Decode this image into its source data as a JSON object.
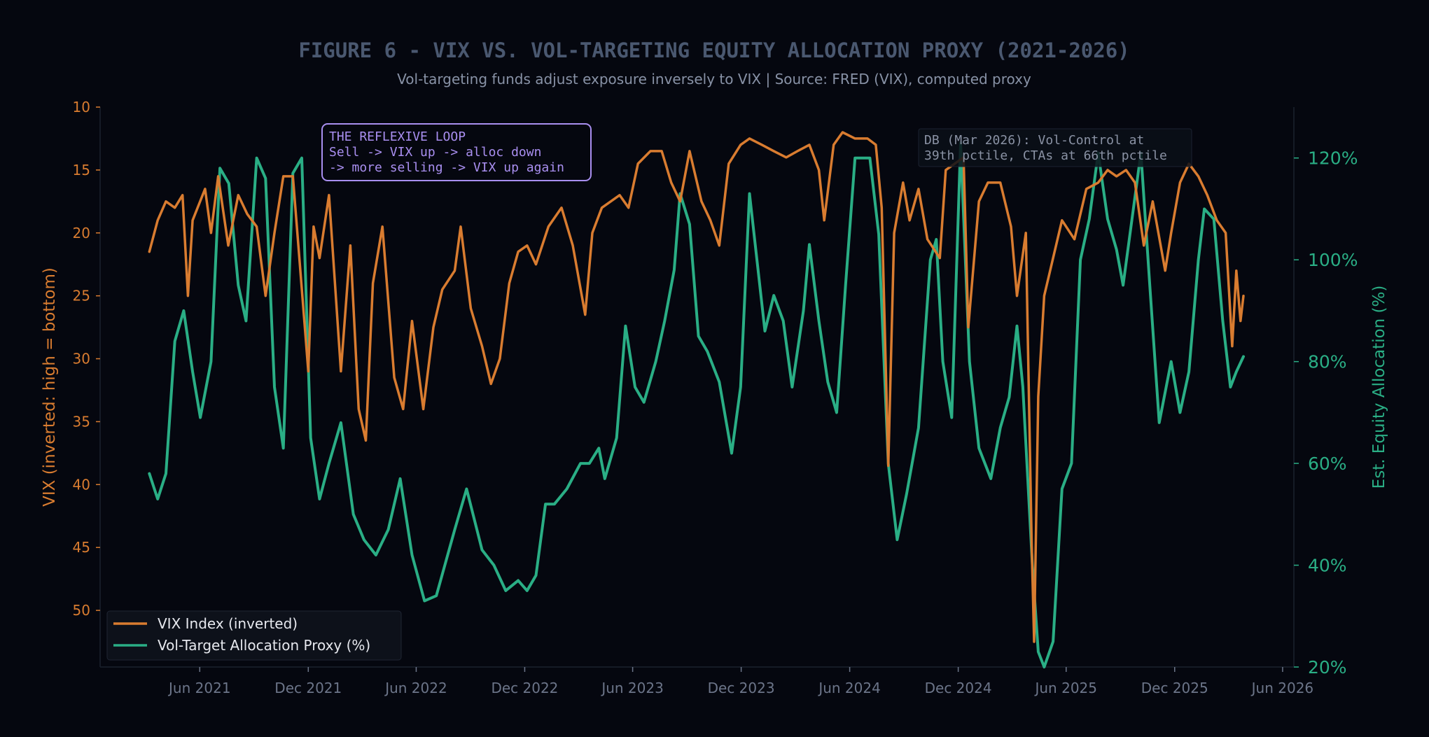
{
  "figure": {
    "title": "FIGURE 6  -  VIX VS. VOL-TARGETING EQUITY ALLOCATION PROXY  (2021-2026)",
    "subtitle": "Vol-targeting funds adjust exposure inversely to VIX  |  Source: FRED (VIX), computed proxy"
  },
  "colors": {
    "background": "#05070f",
    "vix": "#d97c30",
    "alloc": "#2aae85",
    "title": "#4a5870",
    "subtitle": "#8892a6",
    "tick_x": "#6c7589",
    "annotation_purple": "#a98ff0",
    "annotation_gray": "#8a92a4"
  },
  "annotations": {
    "loop_title": "THE REFLEXIVE LOOP",
    "loop_line1": "Sell -> VIX up -> alloc down",
    "loop_line2": "-> more selling -> VIX up again",
    "db_line1": "DB (Mar 2026): Vol-Control at",
    "db_line2": "39th pctile, CTAs at 66th pctile"
  },
  "chart_data": {
    "type": "line",
    "x_label": "",
    "x_ticks": [
      "Jun 2021",
      "Dec 2021",
      "Jun 2022",
      "Dec 2022",
      "Jun 2023",
      "Dec 2023",
      "Jun 2024",
      "Dec 2024",
      "Jun 2025",
      "Dec 2025",
      "Jun 2026"
    ],
    "x_range": [
      "2020-12-15",
      "2026-06-20"
    ],
    "y_left": {
      "label": "VIX (inverted: high = bottom)",
      "inverted": true,
      "range": [
        10,
        54.5
      ],
      "ticks": [
        10,
        15,
        20,
        25,
        30,
        35,
        40,
        45,
        50
      ]
    },
    "y_right": {
      "label": "Est. Equity Allocation (%)",
      "range": [
        20,
        130
      ],
      "ticks": [
        "20%",
        "40%",
        "60%",
        "80%",
        "100%",
        "120%"
      ],
      "tick_values": [
        20,
        40,
        60,
        80,
        100,
        120
      ]
    },
    "legend": {
      "position": "bottom-left"
    },
    "grid": false,
    "series": [
      {
        "name": "VIX Index (inverted)",
        "axis": "left",
        "points": [
          [
            "2021-03-08",
            21.5
          ],
          [
            "2021-03-22",
            19.0
          ],
          [
            "2021-04-05",
            17.5
          ],
          [
            "2021-04-20",
            18.0
          ],
          [
            "2021-05-03",
            17.0
          ],
          [
            "2021-05-12",
            25.0
          ],
          [
            "2021-05-20",
            19.0
          ],
          [
            "2021-06-10",
            16.5
          ],
          [
            "2021-06-20",
            20.0
          ],
          [
            "2021-07-02",
            15.5
          ],
          [
            "2021-07-19",
            21.0
          ],
          [
            "2021-08-05",
            17.0
          ],
          [
            "2021-08-20",
            18.5
          ],
          [
            "2021-09-05",
            19.5
          ],
          [
            "2021-09-20",
            25.0
          ],
          [
            "2021-10-05",
            20.0
          ],
          [
            "2021-10-20",
            15.5
          ],
          [
            "2021-11-05",
            15.5
          ],
          [
            "2021-11-26",
            28.0
          ],
          [
            "2021-12-01",
            31.0
          ],
          [
            "2021-12-10",
            19.5
          ],
          [
            "2021-12-20",
            22.0
          ],
          [
            "2022-01-05",
            17.0
          ],
          [
            "2022-01-25",
            31.0
          ],
          [
            "2022-02-10",
            21.0
          ],
          [
            "2022-02-24",
            34.0
          ],
          [
            "2022-03-08",
            36.5
          ],
          [
            "2022-03-20",
            24.0
          ],
          [
            "2022-04-05",
            19.5
          ],
          [
            "2022-04-25",
            31.5
          ],
          [
            "2022-05-10",
            34.0
          ],
          [
            "2022-05-25",
            27.0
          ],
          [
            "2022-06-13",
            34.0
          ],
          [
            "2022-06-30",
            27.5
          ],
          [
            "2022-07-15",
            24.5
          ],
          [
            "2022-08-05",
            23.0
          ],
          [
            "2022-08-15",
            19.5
          ],
          [
            "2022-09-01",
            26.0
          ],
          [
            "2022-09-20",
            29.0
          ],
          [
            "2022-10-05",
            32.0
          ],
          [
            "2022-10-20",
            30.0
          ],
          [
            "2022-11-05",
            24.0
          ],
          [
            "2022-11-20",
            21.5
          ],
          [
            "2022-12-05",
            21.0
          ],
          [
            "2022-12-20",
            22.5
          ],
          [
            "2023-01-10",
            19.5
          ],
          [
            "2023-02-01",
            18.0
          ],
          [
            "2023-02-20",
            21.0
          ],
          [
            "2023-03-13",
            26.5
          ],
          [
            "2023-03-25",
            20.0
          ],
          [
            "2023-04-10",
            18.0
          ],
          [
            "2023-04-25",
            17.5
          ],
          [
            "2023-05-10",
            17.0
          ],
          [
            "2023-05-25",
            18.0
          ],
          [
            "2023-06-10",
            14.5
          ],
          [
            "2023-07-01",
            13.5
          ],
          [
            "2023-07-20",
            13.5
          ],
          [
            "2023-08-05",
            16.0
          ],
          [
            "2023-08-20",
            17.5
          ],
          [
            "2023-09-05",
            13.5
          ],
          [
            "2023-09-25",
            17.5
          ],
          [
            "2023-10-10",
            19.0
          ],
          [
            "2023-10-25",
            21.0
          ],
          [
            "2023-11-10",
            14.5
          ],
          [
            "2023-11-30",
            13.0
          ],
          [
            "2023-12-15",
            12.5
          ],
          [
            "2024-01-05",
            13.0
          ],
          [
            "2024-01-25",
            13.5
          ],
          [
            "2024-02-15",
            14.0
          ],
          [
            "2024-03-05",
            13.5
          ],
          [
            "2024-03-25",
            13.0
          ],
          [
            "2024-04-10",
            15.0
          ],
          [
            "2024-04-19",
            19.0
          ],
          [
            "2024-05-05",
            13.0
          ],
          [
            "2024-05-20",
            12.0
          ],
          [
            "2024-06-10",
            12.5
          ],
          [
            "2024-07-01",
            12.5
          ],
          [
            "2024-07-15",
            13.0
          ],
          [
            "2024-07-25",
            18.0
          ],
          [
            "2024-08-05",
            38.5
          ],
          [
            "2024-08-15",
            20.0
          ],
          [
            "2024-08-30",
            16.0
          ],
          [
            "2024-09-10",
            19.0
          ],
          [
            "2024-09-25",
            16.5
          ],
          [
            "2024-10-10",
            20.5
          ],
          [
            "2024-10-31",
            22.0
          ],
          [
            "2024-11-10",
            15.0
          ],
          [
            "2024-11-25",
            14.5
          ],
          [
            "2024-12-10",
            14.0
          ],
          [
            "2024-12-18",
            27.5
          ],
          [
            "2025-01-05",
            17.5
          ],
          [
            "2025-01-20",
            16.0
          ],
          [
            "2025-02-10",
            16.0
          ],
          [
            "2025-02-28",
            19.5
          ],
          [
            "2025-03-10",
            25.0
          ],
          [
            "2025-03-25",
            20.0
          ],
          [
            "2025-04-04",
            45.0
          ],
          [
            "2025-04-08",
            52.5
          ],
          [
            "2025-04-15",
            33.0
          ],
          [
            "2025-04-25",
            25.0
          ],
          [
            "2025-05-10",
            22.0
          ],
          [
            "2025-05-25",
            19.0
          ],
          [
            "2025-06-15",
            20.5
          ],
          [
            "2025-07-05",
            16.5
          ],
          [
            "2025-07-25",
            16.0
          ],
          [
            "2025-08-10",
            15.0
          ],
          [
            "2025-08-25",
            15.5
          ],
          [
            "2025-09-10",
            15.0
          ],
          [
            "2025-09-25",
            16.0
          ],
          [
            "2025-10-10",
            21.0
          ],
          [
            "2025-10-25",
            17.5
          ],
          [
            "2025-11-15",
            23.0
          ],
          [
            "2025-11-25",
            20.0
          ],
          [
            "2025-12-10",
            16.0
          ],
          [
            "2025-12-25",
            14.5
          ],
          [
            "2026-01-10",
            15.5
          ],
          [
            "2026-01-25",
            17.0
          ],
          [
            "2026-02-10",
            19.0
          ],
          [
            "2026-02-25",
            20.0
          ],
          [
            "2026-03-08",
            29.0
          ],
          [
            "2026-03-15",
            23.0
          ],
          [
            "2026-03-22",
            27.0
          ],
          [
            "2026-03-27",
            25.0
          ]
        ]
      },
      {
        "name": "Vol-Target Allocation Proxy (%)",
        "axis": "right",
        "points": [
          [
            "2021-03-08",
            58
          ],
          [
            "2021-03-22",
            53
          ],
          [
            "2021-04-05",
            58
          ],
          [
            "2021-04-20",
            84
          ],
          [
            "2021-05-05",
            90
          ],
          [
            "2021-05-20",
            78
          ],
          [
            "2021-06-02",
            69
          ],
          [
            "2021-06-20",
            80
          ],
          [
            "2021-07-05",
            118
          ],
          [
            "2021-07-20",
            115
          ],
          [
            "2021-08-05",
            95
          ],
          [
            "2021-08-18",
            88
          ],
          [
            "2021-09-05",
            120
          ],
          [
            "2021-09-20",
            116
          ],
          [
            "2021-10-05",
            75
          ],
          [
            "2021-10-20",
            63
          ],
          [
            "2021-11-05",
            117
          ],
          [
            "2021-11-20",
            120
          ],
          [
            "2021-12-05",
            65
          ],
          [
            "2021-12-20",
            53
          ],
          [
            "2022-01-05",
            60
          ],
          [
            "2022-01-25",
            68
          ],
          [
            "2022-02-15",
            50
          ],
          [
            "2022-03-05",
            45
          ],
          [
            "2022-03-25",
            42
          ],
          [
            "2022-04-15",
            47
          ],
          [
            "2022-05-05",
            57
          ],
          [
            "2022-05-25",
            42
          ],
          [
            "2022-06-15",
            33
          ],
          [
            "2022-07-05",
            34
          ],
          [
            "2022-08-05",
            47
          ],
          [
            "2022-08-25",
            55
          ],
          [
            "2022-09-20",
            43
          ],
          [
            "2022-10-10",
            40
          ],
          [
            "2022-10-30",
            35
          ],
          [
            "2022-11-20",
            37
          ],
          [
            "2022-12-05",
            35
          ],
          [
            "2022-12-20",
            38
          ],
          [
            "2023-01-05",
            52
          ],
          [
            "2023-01-20",
            52
          ],
          [
            "2023-02-10",
            55
          ],
          [
            "2023-03-05",
            60
          ],
          [
            "2023-03-20",
            60
          ],
          [
            "2023-04-05",
            63
          ],
          [
            "2023-04-15",
            57
          ],
          [
            "2023-05-05",
            65
          ],
          [
            "2023-05-20",
            87
          ],
          [
            "2023-06-05",
            75
          ],
          [
            "2023-06-20",
            72
          ],
          [
            "2023-07-10",
            80
          ],
          [
            "2023-07-25",
            88
          ],
          [
            "2023-08-10",
            98
          ],
          [
            "2023-08-20",
            113
          ],
          [
            "2023-09-05",
            107
          ],
          [
            "2023-09-20",
            85
          ],
          [
            "2023-10-05",
            82
          ],
          [
            "2023-10-25",
            76
          ],
          [
            "2023-11-15",
            62
          ],
          [
            "2023-11-30",
            75
          ],
          [
            "2023-12-15",
            113
          ],
          [
            "2024-01-10",
            86
          ],
          [
            "2024-01-25",
            93
          ],
          [
            "2024-02-10",
            88
          ],
          [
            "2024-02-25",
            75
          ],
          [
            "2024-03-15",
            90
          ],
          [
            "2024-03-25",
            103
          ],
          [
            "2024-04-10",
            88
          ],
          [
            "2024-04-25",
            76
          ],
          [
            "2024-05-10",
            70
          ],
          [
            "2024-05-25",
            95
          ],
          [
            "2024-06-10",
            120
          ],
          [
            "2024-07-05",
            120
          ],
          [
            "2024-07-20",
            105
          ],
          [
            "2024-08-05",
            60
          ],
          [
            "2024-08-20",
            45
          ],
          [
            "2024-09-05",
            54
          ],
          [
            "2024-09-25",
            67
          ],
          [
            "2024-10-15",
            100
          ],
          [
            "2024-10-25",
            104
          ],
          [
            "2024-11-05",
            80
          ],
          [
            "2024-11-20",
            69
          ],
          [
            "2024-12-05",
            123
          ],
          [
            "2024-12-20",
            80
          ],
          [
            "2025-01-05",
            63
          ],
          [
            "2025-01-25",
            57
          ],
          [
            "2025-02-10",
            67
          ],
          [
            "2025-02-25",
            73
          ],
          [
            "2025-03-10",
            87
          ],
          [
            "2025-03-20",
            75
          ],
          [
            "2025-04-05",
            40
          ],
          [
            "2025-04-15",
            23
          ],
          [
            "2025-04-25",
            20
          ],
          [
            "2025-05-10",
            25
          ],
          [
            "2025-05-25",
            55
          ],
          [
            "2025-06-10",
            60
          ],
          [
            "2025-06-25",
            100
          ],
          [
            "2025-07-10",
            108
          ],
          [
            "2025-07-25",
            121
          ],
          [
            "2025-08-10",
            108
          ],
          [
            "2025-08-25",
            102
          ],
          [
            "2025-09-05",
            95
          ],
          [
            "2025-09-20",
            108
          ],
          [
            "2025-10-05",
            121
          ],
          [
            "2025-10-20",
            95
          ],
          [
            "2025-11-05",
            68
          ],
          [
            "2025-11-25",
            80
          ],
          [
            "2025-12-10",
            70
          ],
          [
            "2025-12-25",
            78
          ],
          [
            "2026-01-10",
            100
          ],
          [
            "2026-01-20",
            110
          ],
          [
            "2026-02-05",
            108
          ],
          [
            "2026-02-20",
            88
          ],
          [
            "2026-03-05",
            75
          ],
          [
            "2026-03-15",
            78
          ],
          [
            "2026-03-27",
            81
          ]
        ]
      }
    ]
  }
}
